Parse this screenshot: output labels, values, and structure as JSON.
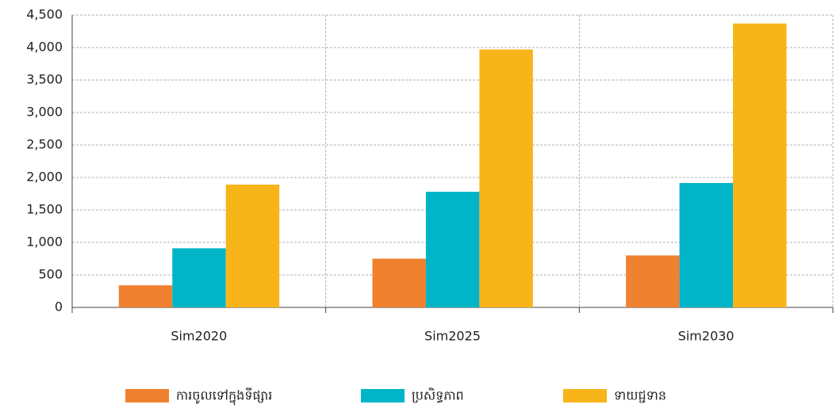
{
  "chart_data": {
    "type": "bar",
    "categories": [
      "Sim2020",
      "Sim2025",
      "Sim2030"
    ],
    "series": [
      {
        "name": "ការចូលទៅក្នុងទីផ្សារ",
        "color": "#f0812f",
        "values": [
          340,
          750,
          800
        ]
      },
      {
        "name": "ប្រសិទ្ធភាព",
        "color": "#00b5c8",
        "values": [
          910,
          1780,
          1915
        ]
      },
      {
        "name": "ទាយជ្ជទាន",
        "color": "#f8b519",
        "values": [
          1890,
          3970,
          4370
        ]
      }
    ],
    "ylim": [
      0,
      4500
    ],
    "yticks": [
      0,
      500,
      {
        "value": 1000,
        "label": "1,000"
      },
      {
        "value": 1500,
        "label": "1,500"
      },
      {
        "value": 2000,
        "label": "2,000"
      },
      {
        "value": 2500,
        "label": "2,500"
      },
      {
        "value": 3000,
        "label": "3,000"
      },
      {
        "value": 3500,
        "label": "3,500"
      },
      {
        "value": 4000,
        "label": "4,000"
      },
      {
        "value": 4500,
        "label": "4,500"
      }
    ],
    "grid": true,
    "legend": "bottom"
  }
}
